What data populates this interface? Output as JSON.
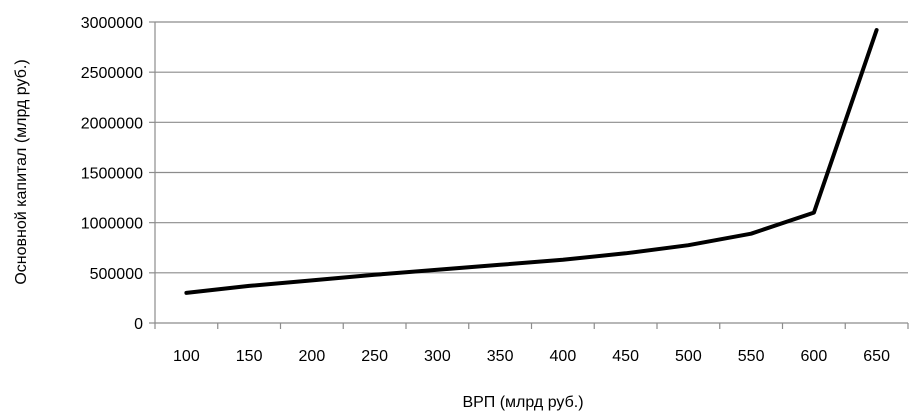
{
  "chart_data": {
    "type": "line",
    "xlabel": "ВРП (млрд руб.)",
    "ylabel": "Основной капитал (млрд руб.)",
    "categories": [
      "100",
      "150",
      "200",
      "250",
      "300",
      "350",
      "400",
      "450",
      "500",
      "550",
      "600",
      "650"
    ],
    "yticks": [
      "0",
      "500000",
      "1000000",
      "1500000",
      "2000000",
      "2500000",
      "3000000"
    ],
    "ylim": [
      0,
      3000000
    ],
    "grid": true,
    "legend": "none",
    "series": [
      {
        "values": [
          300000,
          370000,
          425000,
          480000,
          530000,
          580000,
          630000,
          695000,
          775000,
          890000,
          1100000,
          2920000
        ]
      }
    ],
    "colors": {
      "line": "#000000",
      "grid": "#8c8c8c"
    }
  }
}
